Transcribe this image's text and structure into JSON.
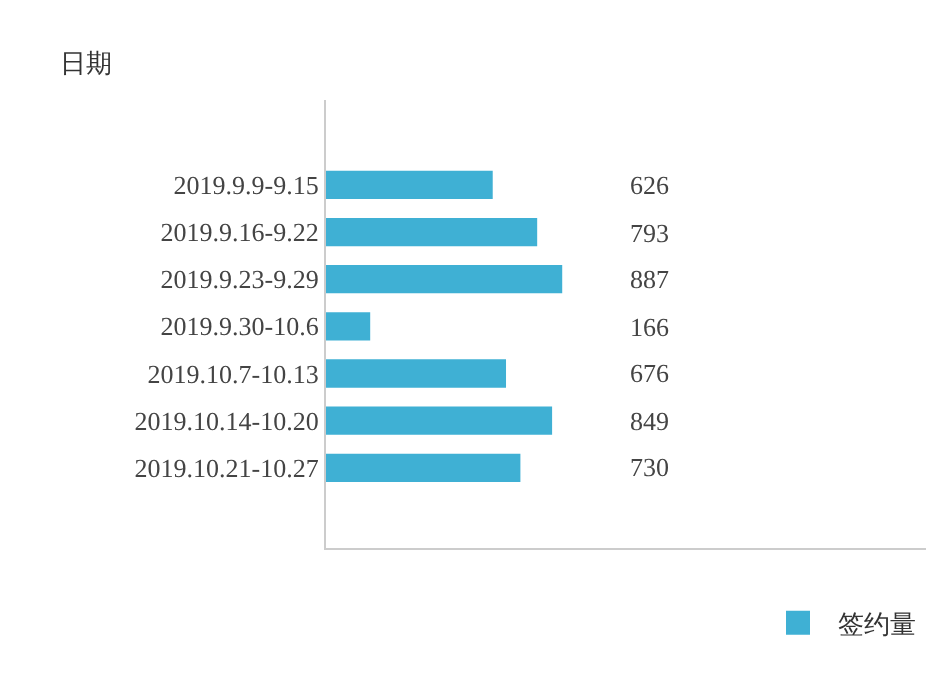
{
  "chart_data": {
    "type": "bar",
    "orientation": "horizontal",
    "ylabel": "日期",
    "categories": [
      "2019.9.9-9.15",
      "2019.9.16-9.22",
      "2019.9.23-9.29",
      "2019.9.30-10.6",
      "2019.10.7-10.13",
      "2019.10.14-10.20",
      "2019.10.21-10.27"
    ],
    "series": [
      {
        "name": "签约量",
        "color": "#3fb0d4",
        "values": [
          626,
          793,
          887,
          166,
          676,
          849,
          730
        ]
      }
    ],
    "data_labels": true,
    "legend": "bottom right"
  }
}
